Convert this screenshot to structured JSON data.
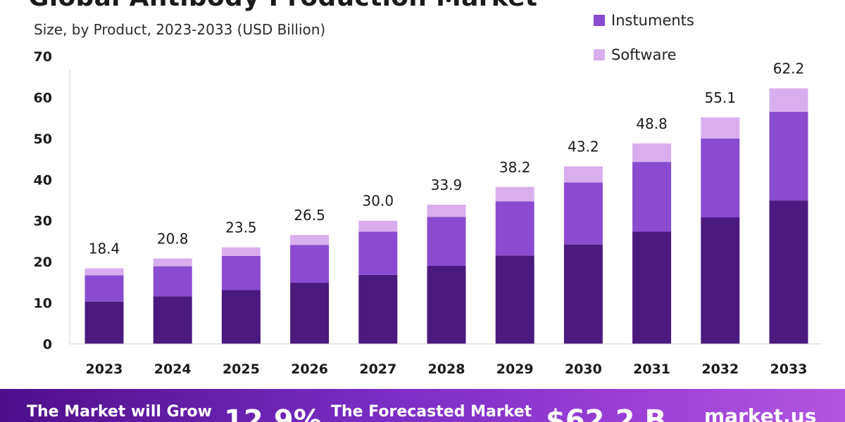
{
  "header": {
    "title": "Global Antibody Production Market",
    "subtitle": "Size, by Product, 2023-2033 (USD Billion)"
  },
  "legend": [
    {
      "label": "Instuments",
      "color": "#8a4bd0"
    },
    {
      "label": "Software",
      "color": "#d9aeee"
    }
  ],
  "chart_data": {
    "type": "bar",
    "stacked": true,
    "title": "Global Antibody Production Market",
    "subtitle": "Size, by Product, 2023-2033 (USD Billion)",
    "categories": [
      "2023",
      "2024",
      "2025",
      "2026",
      "2027",
      "2028",
      "2029",
      "2030",
      "2031",
      "2032",
      "2033"
    ],
    "series": [
      {
        "name": "",
        "color": "#4b1a7e",
        "values": [
          10.3,
          11.6,
          13.1,
          14.9,
          16.8,
          19.0,
          21.5,
          24.2,
          27.3,
          30.8,
          34.9
        ]
      },
      {
        "name": "Instuments",
        "color": "#8a4bd0",
        "values": [
          6.4,
          7.3,
          8.3,
          9.2,
          10.5,
          11.9,
          13.2,
          15.1,
          17.0,
          19.2,
          21.6
        ]
      },
      {
        "name": "Software",
        "color": "#d9aeee",
        "values": [
          1.7,
          1.9,
          2.1,
          2.4,
          2.7,
          3.0,
          3.5,
          3.9,
          4.5,
          5.1,
          5.7
        ]
      }
    ],
    "totals": [
      "18.4",
      "20.8",
      "23.5",
      "26.5",
      "30.0",
      "33.9",
      "38.2",
      "43.2",
      "48.8",
      "55.1",
      "62.2"
    ],
    "yticks": [
      "0",
      "10",
      "20",
      "30",
      "40",
      "50",
      "60",
      "70"
    ],
    "ylim": [
      0,
      70
    ],
    "grid": false,
    "legend_position": "top-right"
  },
  "banner": {
    "grow_text": "The Market will Grow",
    "cagr": "12.9%",
    "forecast_text": "The Forecasted Market",
    "forecast_value": "$62.2 B",
    "brand": "market.us"
  }
}
